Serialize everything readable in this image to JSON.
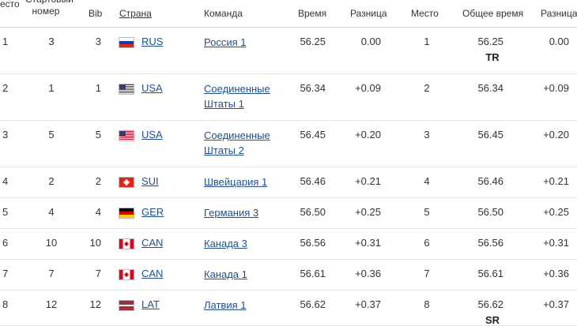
{
  "header": {
    "place": "есто",
    "start_number": "Стартовый\nномер",
    "bib": "Bib",
    "country": "Страна",
    "team": "Команда",
    "time": "Время",
    "diff": "Разница",
    "place2": "Место",
    "total_time": "Общее время",
    "diff2": "Разница"
  },
  "rows": [
    {
      "place": "1",
      "start": "3",
      "bib": "3",
      "country": "RUS",
      "flag": "rus-flag-icon",
      "team": "Россия 1",
      "time": "56.25",
      "diff": "0.00",
      "place2": "1",
      "total": "56.25",
      "diff2": "0.00",
      "badge": "TR"
    },
    {
      "place": "2",
      "start": "1",
      "bib": "1",
      "country": "USA",
      "flag": "usa-flag-icon",
      "team": "Соединенные Штаты 1",
      "time": "56.34",
      "diff": "+0.09",
      "place2": "2",
      "total": "56.34",
      "diff2": "+0.09",
      "badge": ""
    },
    {
      "place": "3",
      "start": "5",
      "bib": "5",
      "country": "USA",
      "flag": "usa-flag-icon",
      "team": "Соединенные Штаты 2",
      "time": "56.45",
      "diff": "+0.20",
      "place2": "3",
      "total": "56.45",
      "diff2": "+0.20",
      "badge": ""
    },
    {
      "place": "4",
      "start": "2",
      "bib": "2",
      "country": "SUI",
      "flag": "sui-flag-icon",
      "team": "Швейцария 1",
      "time": "56.46",
      "diff": "+0.21",
      "place2": "4",
      "total": "56.46",
      "diff2": "+0.21",
      "badge": ""
    },
    {
      "place": "5",
      "start": "4",
      "bib": "4",
      "country": "GER",
      "flag": "ger-flag-icon",
      "team": "Германия 3",
      "time": "56.50",
      "diff": "+0.25",
      "place2": "5",
      "total": "56.50",
      "diff2": "+0.25",
      "badge": ""
    },
    {
      "place": "6",
      "start": "10",
      "bib": "10",
      "country": "CAN",
      "flag": "can-flag-icon",
      "team": "Канада 3",
      "time": "56.56",
      "diff": "+0.31",
      "place2": "6",
      "total": "56.56",
      "diff2": "+0.31",
      "badge": ""
    },
    {
      "place": "7",
      "start": "7",
      "bib": "7",
      "country": "CAN",
      "flag": "can-flag-icon",
      "team": "Канада 1",
      "time": "56.61",
      "diff": "+0.36",
      "place2": "7",
      "total": "56.61",
      "diff2": "+0.36",
      "badge": ""
    },
    {
      "place": "8",
      "start": "12",
      "bib": "12",
      "country": "LAT",
      "flag": "lat-flag-icon",
      "team": "Латвия 1",
      "time": "56.62",
      "diff": "+0.37",
      "place2": "8",
      "total": "56.62",
      "diff2": "+0.37",
      "badge": "SR"
    }
  ]
}
